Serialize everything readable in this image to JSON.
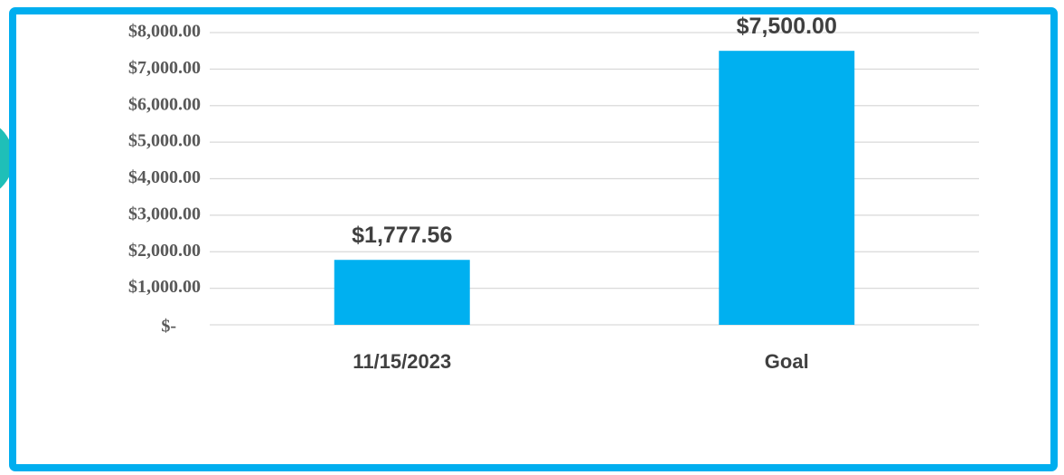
{
  "chart_data": {
    "type": "bar",
    "categories": [
      "11/15/2023",
      "Goal"
    ],
    "values": [
      1777.56,
      7500
    ],
    "value_labels": [
      "$1,777.56",
      "$7,500.00"
    ],
    "color": "#00b0f0",
    "ylim": [
      0,
      8000
    ],
    "yticks": [
      {
        "value": 0,
        "label": "$-"
      },
      {
        "value": 1000,
        "label": "$1,000.00"
      },
      {
        "value": 2000,
        "label": "$2,000.00"
      },
      {
        "value": 3000,
        "label": "$3,000.00"
      },
      {
        "value": 4000,
        "label": "$4,000.00"
      },
      {
        "value": 5000,
        "label": "$5,000.00"
      },
      {
        "value": 6000,
        "label": "$6,000.00"
      },
      {
        "value": 7000,
        "label": "$7,000.00"
      },
      {
        "value": 8000,
        "label": "$8,000.00"
      }
    ],
    "grid": true
  }
}
